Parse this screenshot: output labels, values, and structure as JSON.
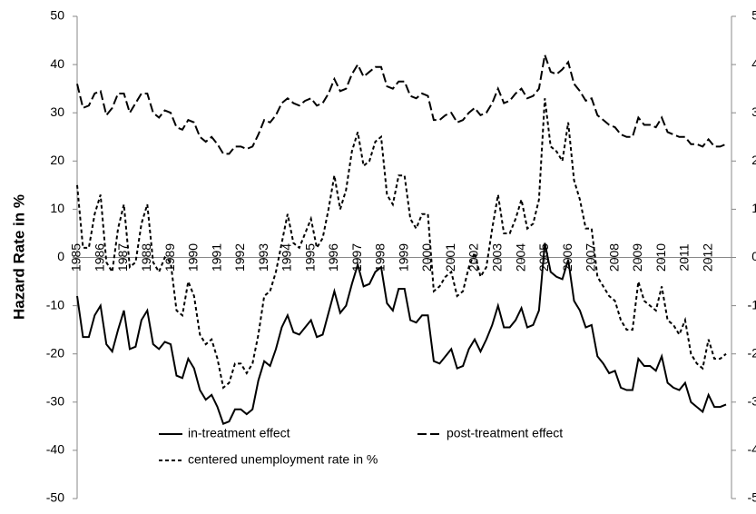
{
  "chart_data": {
    "type": "line",
    "ylabel": "Hazard Rate in %",
    "categories": [
      "1985",
      null,
      null,
      null,
      "1986",
      null,
      null,
      null,
      "1987",
      null,
      null,
      null,
      "1988",
      null,
      null,
      null,
      "1989",
      null,
      null,
      null,
      "1990",
      null,
      null,
      null,
      "1991",
      null,
      null,
      null,
      "1992",
      null,
      null,
      null,
      "1993",
      null,
      null,
      null,
      "1994",
      null,
      null,
      null,
      "1995",
      null,
      null,
      null,
      "1996",
      null,
      null,
      null,
      "1997",
      null,
      null,
      null,
      "1998",
      null,
      null,
      null,
      "1999",
      null,
      null,
      null,
      "2000",
      null,
      null,
      null,
      "2001",
      null,
      null,
      null,
      "2002",
      null,
      null,
      null,
      "2003",
      null,
      null,
      null,
      "2004",
      null,
      null,
      null,
      "2005",
      null,
      null,
      null,
      "2006",
      null,
      null,
      null,
      "2007",
      null,
      null,
      null,
      "2008",
      null,
      null,
      null,
      "2009",
      null,
      null,
      null,
      "2010",
      null,
      null,
      null,
      "2011",
      null,
      null,
      null,
      "2012",
      null,
      null,
      null
    ],
    "series": [
      {
        "name": "in-treatment effect",
        "color": "#000000",
        "line_style": "solid",
        "values": [
          -8,
          -16.5,
          -16.5,
          -12,
          -10,
          -18,
          -19.5,
          -15,
          -11,
          -19,
          -18.5,
          -13,
          -11,
          -18,
          -19,
          -17.5,
          -18,
          -24.5,
          -25,
          -21,
          -23,
          -27.5,
          -29.5,
          -28.5,
          -31,
          -34.5,
          -34,
          -31.5,
          -31.5,
          -32.5,
          -31.5,
          -25.5,
          -21.5,
          -22.5,
          -19,
          -14.5,
          -12,
          -15.5,
          -16,
          -14.5,
          -13,
          -16.5,
          -16,
          -11.5,
          -7,
          -11.5,
          -10,
          -5.5,
          -1.5,
          -6,
          -5.5,
          -3,
          -2,
          -9.5,
          -11,
          -6.5,
          -6.5,
          -13,
          -13.5,
          -12,
          -12,
          -21.5,
          -22,
          -20.5,
          -19,
          -23,
          -22.5,
          -19,
          -17,
          -19.5,
          -17,
          -14,
          -10,
          -14.5,
          -14.5,
          -13,
          -10.5,
          -14.5,
          -14,
          -11,
          3,
          -3,
          -4,
          -4.5,
          -0.5,
          -9,
          -11,
          -14.5,
          -14,
          -20.5,
          -22,
          -24,
          -23.5,
          -27,
          -27.5,
          -27.5,
          -21,
          -22.5,
          -22.5,
          -23.5,
          -20.5,
          -26,
          -27,
          -27.5,
          -26,
          -30,
          -31,
          -32,
          -28.5,
          -31,
          -31,
          -30.5
        ]
      },
      {
        "name": "post-treatment effect",
        "color": "#000000",
        "line_style": "long-dash",
        "values": [
          36,
          31,
          31.5,
          34,
          34.5,
          29.5,
          31,
          34,
          34,
          30,
          32,
          34,
          34,
          30,
          29,
          30.5,
          30,
          27,
          26.5,
          28.5,
          28,
          25,
          24,
          25,
          23.5,
          21.5,
          21.5,
          23,
          23,
          22.5,
          23,
          25.5,
          28.5,
          28,
          29.5,
          32,
          33,
          32,
          31.5,
          32.5,
          33,
          31.5,
          32,
          34,
          37,
          34.5,
          35,
          38,
          40,
          37.5,
          38.5,
          39.5,
          39.5,
          35.5,
          35,
          36.5,
          36.5,
          33.5,
          33,
          34,
          33.5,
          28.5,
          28.5,
          29.5,
          30,
          28,
          28.5,
          30,
          31,
          29.5,
          30,
          32,
          35,
          32,
          32.5,
          34,
          35,
          33,
          33.5,
          35,
          42,
          38.5,
          38,
          39,
          40.5,
          36,
          34.5,
          32.5,
          33,
          29.5,
          28.5,
          27.5,
          27,
          25.5,
          25,
          25,
          29,
          27.5,
          27.5,
          27,
          29,
          26,
          25.5,
          25,
          25,
          23.5,
          23.5,
          23,
          24.5,
          23,
          23,
          23.5
        ]
      },
      {
        "name": "centered unemployment rate in %",
        "color": "#000000",
        "line_style": "short-dash",
        "axis": "y2",
        "values": [
          1.5,
          0.2,
          0.2,
          0.9,
          1.3,
          -0.1,
          -0.3,
          0.6,
          1.1,
          -0.2,
          -0.1,
          0.7,
          1.1,
          -0.1,
          -0.3,
          0,
          -0.1,
          -1.1,
          -1.2,
          -0.5,
          -0.8,
          -1.6,
          -1.8,
          -1.7,
          -2.1,
          -2.7,
          -2.6,
          -2.2,
          -2.2,
          -2.4,
          -2.2,
          -1.6,
          -0.8,
          -0.7,
          -0.3,
          0.3,
          0.9,
          0.3,
          0.2,
          0.5,
          0.8,
          0.2,
          0.4,
          1.0,
          1.7,
          1.0,
          1.4,
          2.2,
          2.6,
          1.9,
          2.0,
          2.4,
          2.5,
          1.3,
          1.1,
          1.7,
          1.7,
          0.8,
          0.6,
          0.9,
          0.9,
          -0.7,
          -0.6,
          -0.4,
          -0.3,
          -0.8,
          -0.7,
          -0.2,
          0.1,
          -0.4,
          -0.2,
          0.6,
          1.3,
          0.5,
          0.5,
          0.8,
          1.2,
          0.6,
          0.7,
          1.2,
          3.3,
          2.3,
          2.2,
          2.0,
          2.8,
          1.6,
          1.2,
          0.6,
          0.6,
          -0.4,
          -0.6,
          -0.8,
          -0.9,
          -1.3,
          -1.5,
          -1.5,
          -0.5,
          -0.9,
          -1.0,
          -1.1,
          -0.6,
          -1.3,
          -1.4,
          -1.6,
          -1.3,
          -2.0,
          -2.2,
          -2.3,
          -1.7,
          -2.1,
          -2.1,
          -2.0
        ]
      }
    ],
    "ylim": [
      -50,
      50
    ],
    "yticks": [
      -50,
      -40,
      -30,
      -20,
      -10,
      0,
      10,
      20,
      30,
      40,
      50
    ],
    "y2lim": [
      -5,
      5
    ],
    "y2ticks": [
      -5,
      -4,
      -3,
      -2,
      -1,
      0,
      1,
      2,
      3,
      4,
      5
    ],
    "grid": false,
    "legend": "bottom"
  }
}
